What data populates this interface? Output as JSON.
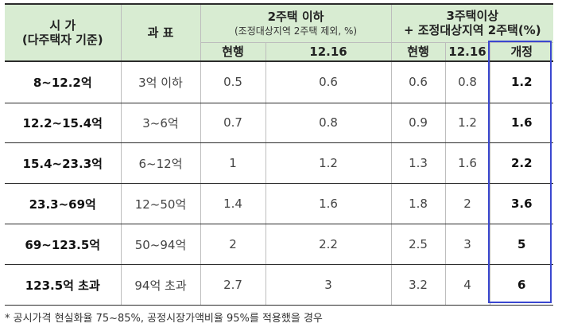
{
  "header": {
    "price_line1": "시 가",
    "price_line2": "(다주택자 기준)",
    "bracket": "과 표",
    "group1_title": "2주택 이하",
    "group1_sub": "(조정대상지역 2주택 제외, %)",
    "group2_line1": "3주택이상",
    "group2_line2": "+ 조정대상지역 2주택(%)",
    "col_current_1": "현행",
    "col_1216_1": "12.16",
    "col_current_2": "현행",
    "col_1216_2": "12.16",
    "col_revised": "개정"
  },
  "rows": [
    {
      "price": "8~12.2억",
      "bracket": "3억 이하",
      "g1_current": "0.5",
      "g1_1216": "0.6",
      "g2_current": "0.6",
      "g2_1216": "0.8",
      "revised": "1.2"
    },
    {
      "price": "12.2~15.4억",
      "bracket": "3~6억",
      "g1_current": "0.7",
      "g1_1216": "0.8",
      "g2_current": "0.9",
      "g2_1216": "1.2",
      "revised": "1.6"
    },
    {
      "price": "15.4~23.3억",
      "bracket": "6~12억",
      "g1_current": "1",
      "g1_1216": "1.2",
      "g2_current": "1.3",
      "g2_1216": "1.6",
      "revised": "2.2"
    },
    {
      "price": "23.3~69억",
      "bracket": "12~50억",
      "g1_current": "1.4",
      "g1_1216": "1.6",
      "g2_current": "1.8",
      "g2_1216": "2",
      "revised": "3.6"
    },
    {
      "price": "69~123.5억",
      "bracket": "50~94억",
      "g1_current": "2",
      "g1_1216": "2.2",
      "g2_current": "2.5",
      "g2_1216": "3",
      "revised": "5"
    },
    {
      "price": "123.5억 초과",
      "bracket": "94억 초과",
      "g1_current": "2.7",
      "g1_1216": "3",
      "g2_current": "3.2",
      "g2_1216": "4",
      "revised": "6"
    }
  ],
  "footnote": "* 공시가격 현실화율 75~85%, 공정시장가액비율 95%를 적용했을 경우",
  "colors": {
    "header_bg": "#d8ecd2",
    "highlight_border": "#3a47d0"
  }
}
